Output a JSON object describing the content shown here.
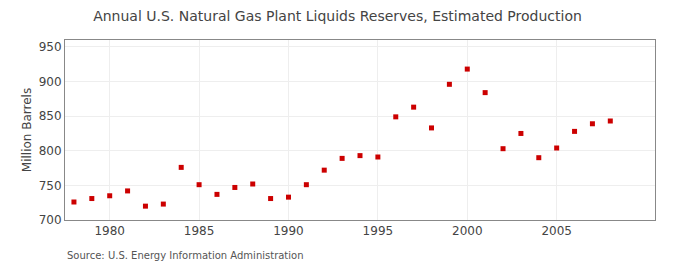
{
  "chart_data": {
    "type": "scatter",
    "title": "Annual U.S. Natural Gas Plant Liquids Reserves, Estimated Production",
    "ylabel": "Million Barrels",
    "annotations": [
      "Source: U.S. Energy Information Administration"
    ],
    "x": [
      1978,
      1979,
      1980,
      1981,
      1982,
      1983,
      1984,
      1985,
      1986,
      1987,
      1988,
      1989,
      1990,
      1991,
      1992,
      1993,
      1994,
      1995,
      1996,
      1997,
      1998,
      1999,
      2000,
      2001,
      2002,
      2003,
      2004,
      2005,
      2006,
      2007,
      2008
    ],
    "values": [
      726,
      731,
      735,
      742,
      720,
      723,
      776,
      751,
      737,
      747,
      752,
      731,
      733,
      751,
      772,
      789,
      793,
      791,
      849,
      863,
      833,
      896,
      918,
      884,
      803,
      825,
      790,
      804,
      828,
      839,
      843
    ],
    "xlim": [
      1977.5,
      2010.5
    ],
    "xticks": [
      1980,
      1985,
      1990,
      1995,
      2000,
      2005
    ],
    "ylim": [
      700,
      960
    ],
    "yticks": [
      700,
      750,
      800,
      850,
      900,
      950
    ],
    "color": "#cc0000",
    "marker": "square",
    "grid": true
  }
}
